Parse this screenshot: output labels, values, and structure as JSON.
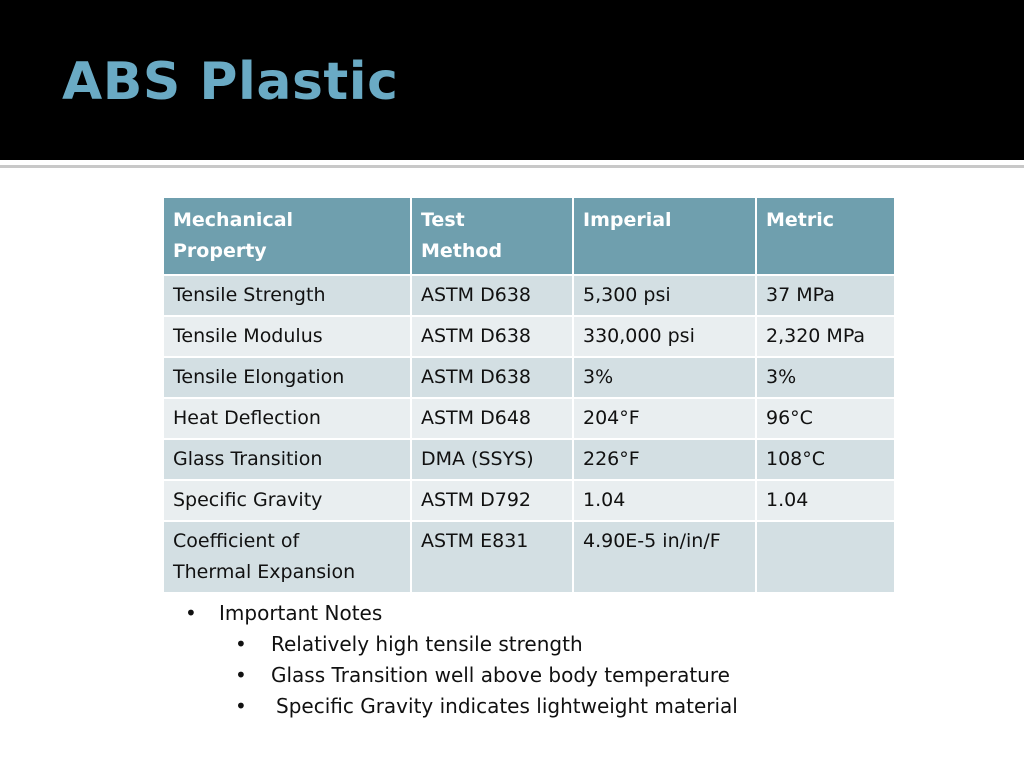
{
  "header": {
    "title": "ABS Plastic"
  },
  "table": {
    "header": [
      "Mechanical\nProperty",
      "Test\nMethod",
      "Imperial",
      "Metric"
    ],
    "rows": [
      [
        "Tensile Strength",
        "ASTM D638",
        "5,300 psi",
        "37 MPa"
      ],
      [
        "Tensile Modulus",
        "ASTM D638",
        "330,000 psi",
        "2,320 MPa"
      ],
      [
        "Tensile Elongation",
        "ASTM D638",
        "3%",
        "3%"
      ],
      [
        "Heat Deflection",
        "ASTM D648",
        "204°F",
        "96°C"
      ],
      [
        "Glass Transition",
        "DMA (SSYS)",
        "226°F",
        "108°C"
      ],
      [
        "Specific Gravity",
        "ASTM D792",
        "1.04",
        "1.04"
      ],
      [
        "Coefficient of\nThermal Expansion",
        "ASTM E831",
        "4.90E-5 in/in/F",
        null
      ]
    ]
  },
  "notes": {
    "title": "Important Notes",
    "items": [
      "Relatively high tensile strength",
      "Glass Transition well above body temperature",
      "Specific Gravity indicates lightweight material"
    ]
  }
}
